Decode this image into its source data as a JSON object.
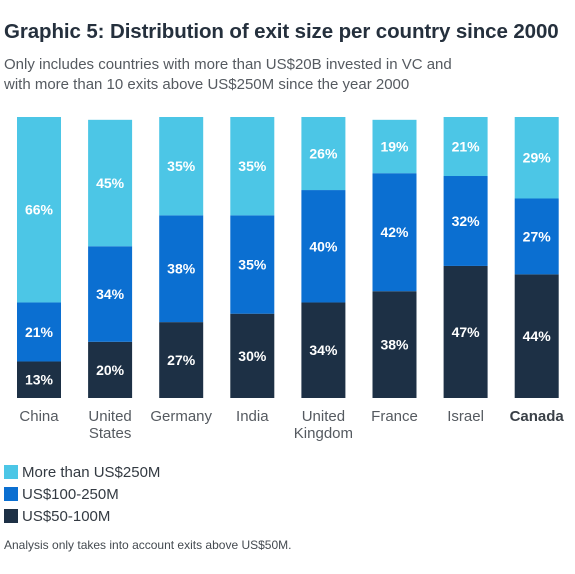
{
  "title": "Graphic 5: Distribution of exit size per country since 2000",
  "subtitle_lines": [
    "Only includes countries with more than US$20B invested in VC and",
    "with more than 10 exits above US$250M since the year 2000"
  ],
  "note": "Analysis only takes into account exits above US$50M.",
  "colors": {
    "more_than_250": "#4cc6e6",
    "range_100_250": "#0b6fd1",
    "range_50_100": "#1d3045"
  },
  "chart_data": {
    "type": "bar",
    "stacked": true,
    "percent_stacked": true,
    "categories": [
      [
        "China"
      ],
      [
        "United",
        "States"
      ],
      [
        "Germany"
      ],
      [
        "India"
      ],
      [
        "United",
        "Kingdom"
      ],
      [
        "France"
      ],
      [
        "Israel"
      ],
      [
        "Canada"
      ]
    ],
    "highlighted_category": "Canada",
    "series": [
      {
        "name": "US$50-100M",
        "color": "#1d3045",
        "values": [
          13,
          20,
          27,
          30,
          34,
          38,
          47,
          44
        ]
      },
      {
        "name": "US$100-250M",
        "color": "#0b6fd1",
        "values": [
          21,
          34,
          38,
          35,
          40,
          42,
          32,
          27
        ]
      },
      {
        "name": "More than US$250M",
        "color": "#4cc6e6",
        "values": [
          66,
          45,
          35,
          35,
          26,
          19,
          21,
          29
        ]
      }
    ],
    "value_suffix": "%",
    "ylim": [
      0,
      100
    ],
    "grid": false,
    "legend_position": "bottom-left",
    "legend_order": [
      "More than US$250M",
      "US$100-250M",
      "US$50-100M"
    ]
  }
}
